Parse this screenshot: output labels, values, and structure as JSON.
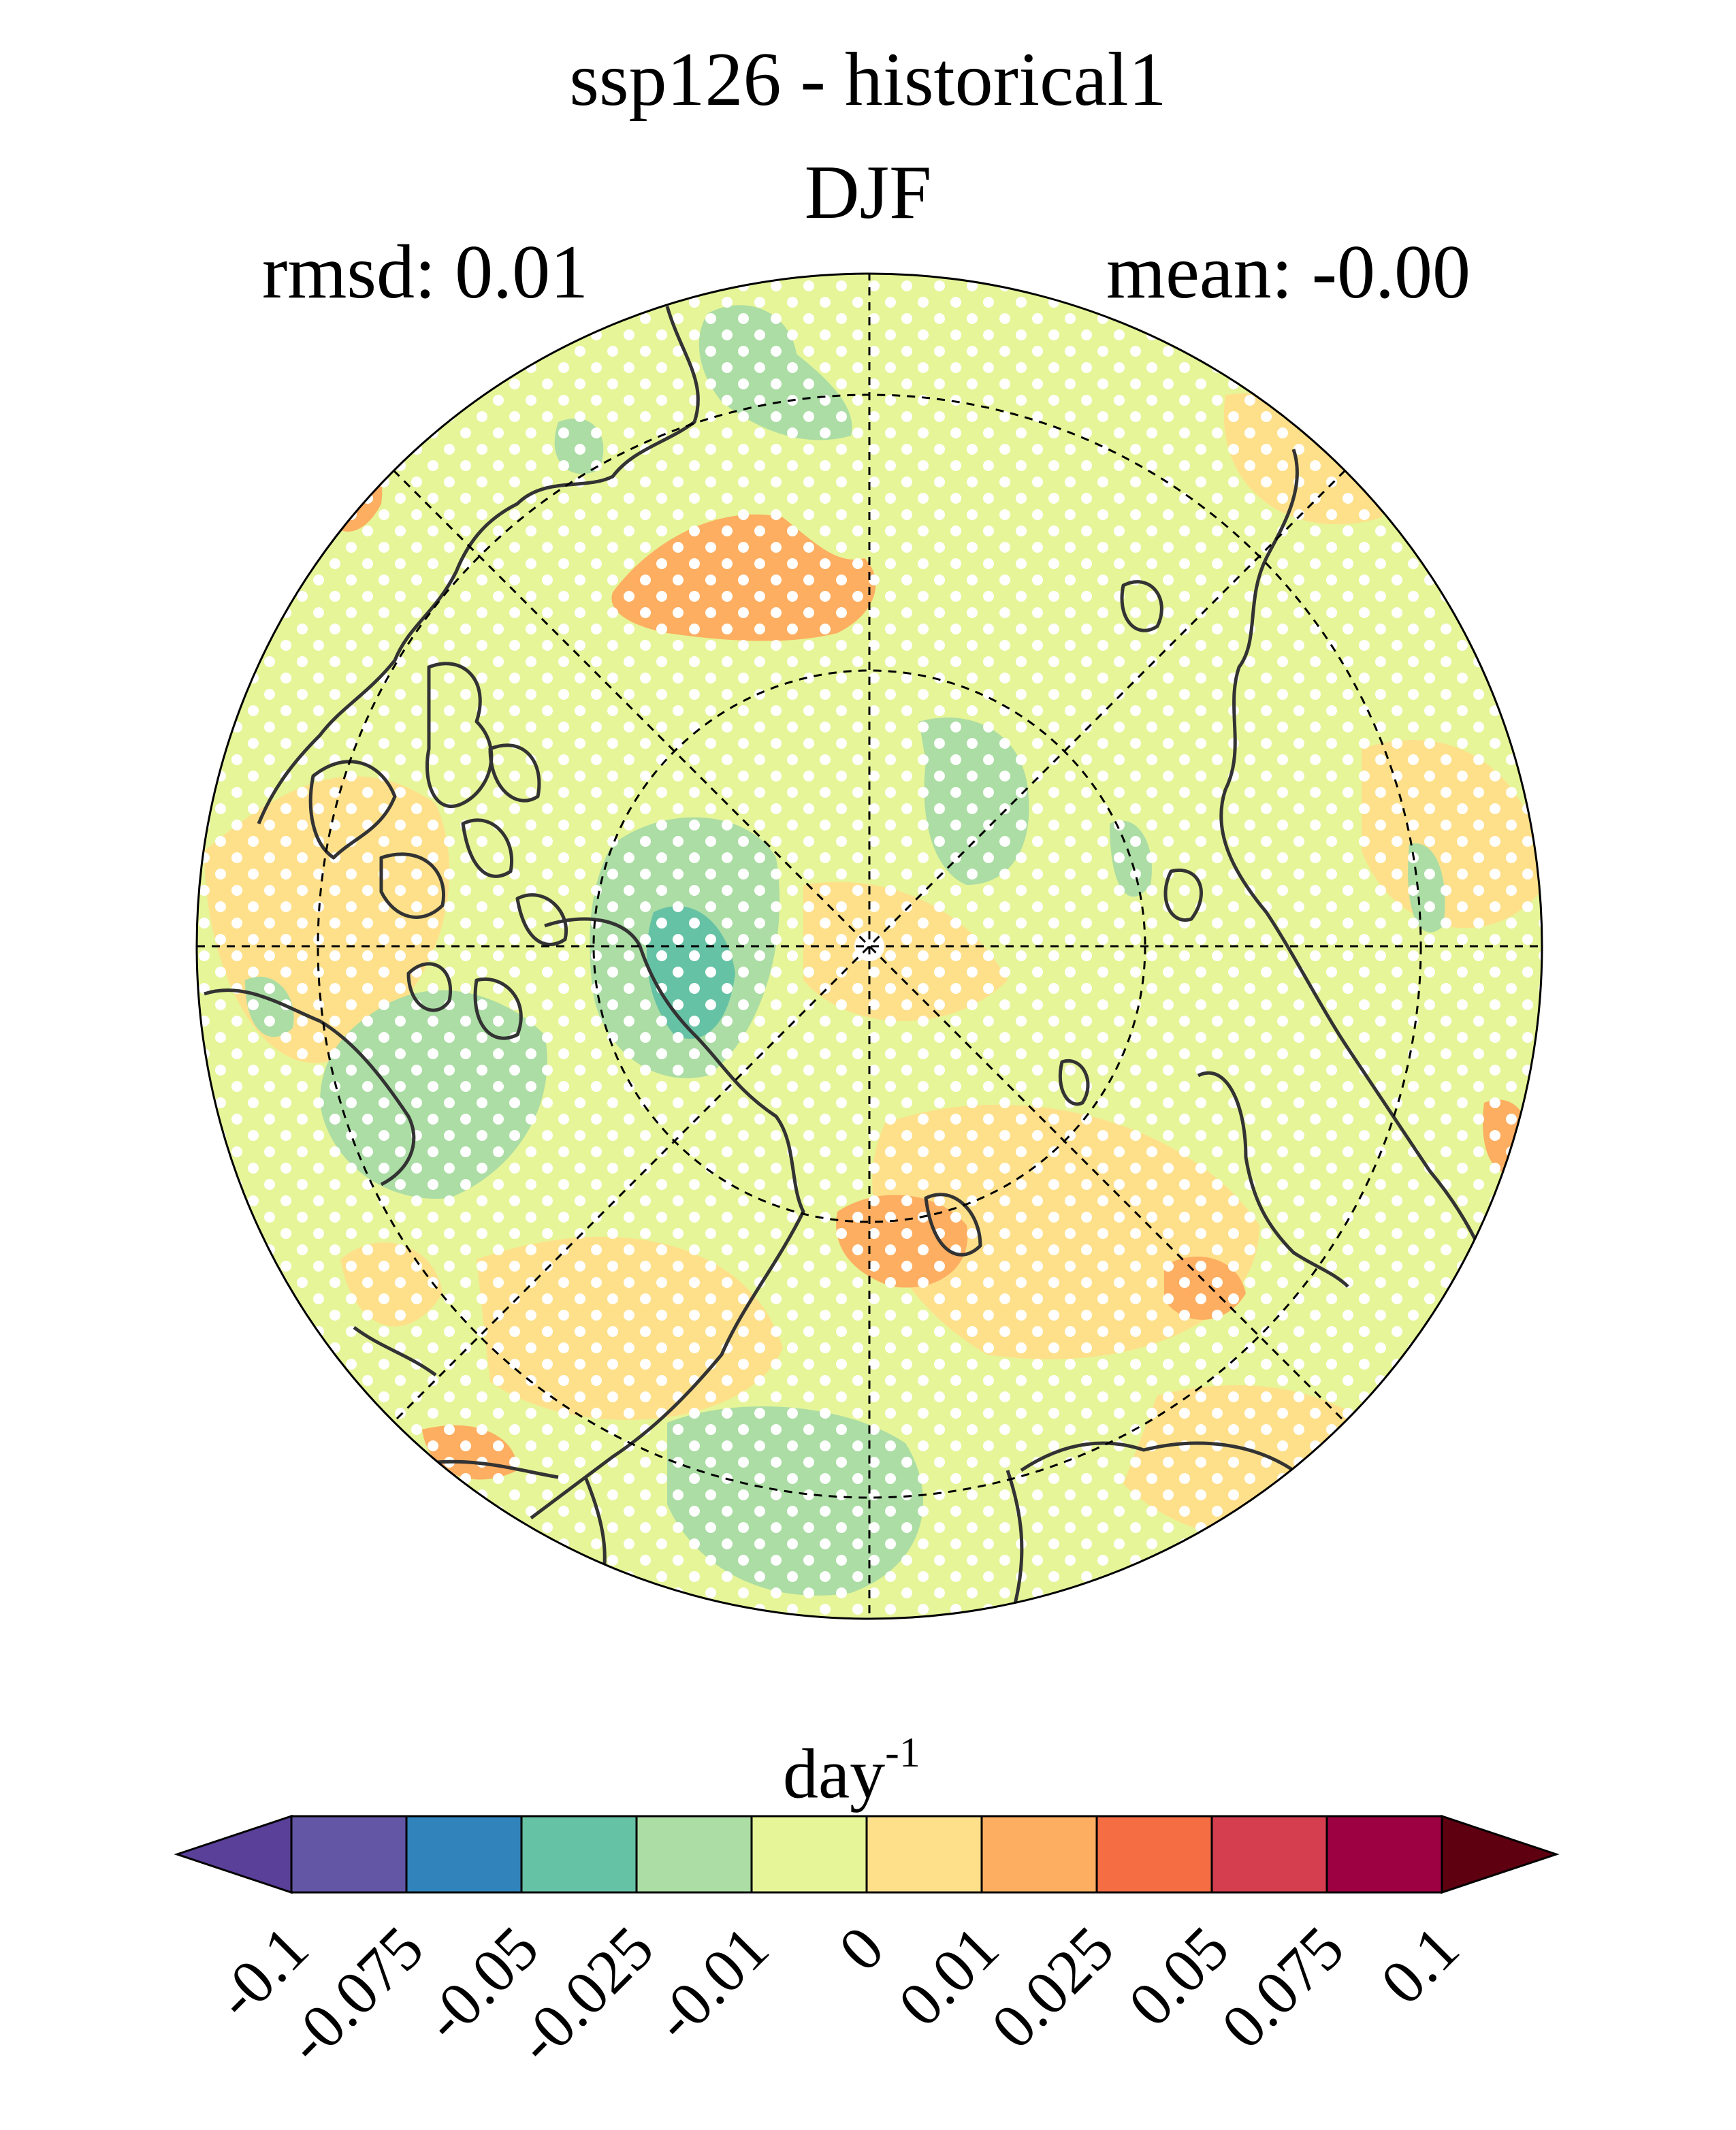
{
  "title": "ssp126 - historical1",
  "season": "DJF",
  "stats": {
    "rmsd_label": "rmsd: 0.01",
    "mean_label": "mean: -0.00"
  },
  "map": {
    "projection": "north-polar-stereographic",
    "background_class": "0 to 0.01 / -0.01 to 0",
    "stippling": "white dots over most of the domain",
    "regions": [
      {
        "name": "central-arctic-green-patch",
        "class": "-0.025 to -0.01"
      },
      {
        "name": "baffin-bay-patch",
        "class": "-0.05 to -0.025"
      },
      {
        "name": "canadian-arctic-green",
        "class": "-0.025 to -0.01"
      },
      {
        "name": "pacific-green-patch",
        "class": "-0.025 to -0.01"
      },
      {
        "name": "north-atlantic-orange-patch",
        "class": "0.01 to 0.025"
      },
      {
        "name": "siberia-orange-patch",
        "class": "0.01 to 0.025"
      }
    ]
  },
  "colorbar": {
    "unit_base": "day",
    "unit_exp": "-1",
    "ticks": [
      "-0.1",
      "-0.075",
      "-0.05",
      "-0.025",
      "-0.01",
      "0",
      "0.01",
      "0.025",
      "0.05",
      "0.075",
      "0.1"
    ],
    "colors": [
      "#5a4098",
      "#6256a5",
      "#3183bc",
      "#66c2a4",
      "#abdda4",
      "#e6f598",
      "#fee08b",
      "#fdae61",
      "#f46d43",
      "#d53e4f",
      "#9e0142",
      "#5e0010"
    ],
    "extend": "both"
  },
  "palette": {
    "green_light": "#abdda4",
    "green_teal": "#66c2a4",
    "yellow_green": "#e6f598",
    "yellow": "#fee08b",
    "orange": "#fdae61",
    "red_orange": "#f46d43",
    "coast": "#333333"
  }
}
